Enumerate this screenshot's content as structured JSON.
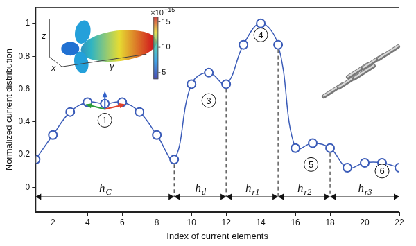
{
  "chart_data": {
    "type": "line",
    "x_label": "Index of current elements",
    "y_label": "Normalized current distribution",
    "x": [
      1,
      2,
      3,
      4,
      5,
      6,
      7,
      8,
      9,
      10,
      11,
      12,
      13,
      14,
      15,
      16,
      17,
      18,
      19,
      20,
      21,
      22
    ],
    "values": [
      0.17,
      0.32,
      0.46,
      0.52,
      0.51,
      0.52,
      0.46,
      0.32,
      0.17,
      0.63,
      0.7,
      0.63,
      0.87,
      1.0,
      0.87,
      0.24,
      0.27,
      0.24,
      0.12,
      0.15,
      0.15,
      0.12
    ],
    "color": "#3a5bb8",
    "marker": "circle",
    "line_style": "solid",
    "xlim": [
      1,
      22
    ],
    "xticks": [
      2,
      4,
      6,
      8,
      10,
      12,
      14,
      16,
      18,
      20,
      22
    ],
    "ylim": [
      -0.15,
      1.1
    ],
    "yticks": [
      0,
      0.2,
      0.4,
      0.6,
      0.8,
      1
    ],
    "grid": false,
    "annotations": [
      {
        "text": "1",
        "x": 5,
        "y": 0.41
      },
      {
        "text": "3",
        "x": 11,
        "y": 0.53
      },
      {
        "text": "4",
        "x": 14,
        "y": 0.93
      },
      {
        "text": "5",
        "x": 16.9,
        "y": 0.14
      },
      {
        "text": "6",
        "x": 21,
        "y": 0.1
      }
    ],
    "segments": [
      {
        "label": "h",
        "subscript": "C",
        "from": 1,
        "to": 9
      },
      {
        "label": "h",
        "subscript": "d",
        "from": 9,
        "to": 12
      },
      {
        "label": "h",
        "subscript": "r1",
        "from": 12,
        "to": 15
      },
      {
        "label": "h",
        "subscript": "r2",
        "from": 15,
        "to": 18
      },
      {
        "label": "h",
        "subscript": "r3",
        "from": 18,
        "to": 22
      }
    ],
    "inset": {
      "axis_labels": [
        "x",
        "y",
        "z"
      ],
      "colorbar": {
        "label": "×10",
        "exponent": "−15",
        "lim": [
          3.7,
          16
        ],
        "ticks": [
          5,
          10,
          15
        ]
      }
    }
  }
}
